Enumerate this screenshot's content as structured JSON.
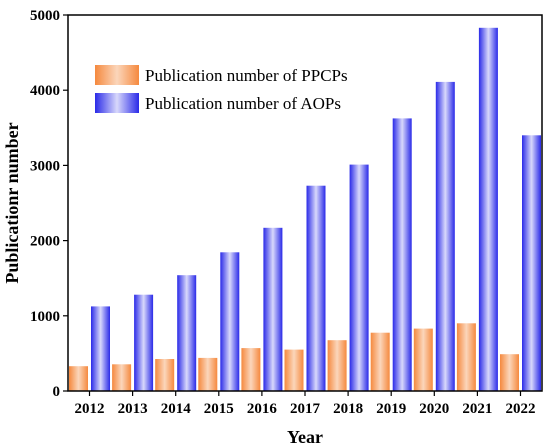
{
  "chart_data": {
    "type": "bar",
    "title": "",
    "xlabel": "Year",
    "ylabel": "Publicationr number",
    "categories": [
      "2012",
      "2013",
      "2014",
      "2015",
      "2016",
      "2017",
      "2018",
      "2019",
      "2020",
      "2021",
      "2022"
    ],
    "series": [
      {
        "name": "Publication number of PPCPs",
        "values": [
          330,
          355,
          425,
          440,
          570,
          550,
          675,
          775,
          830,
          900,
          490
        ],
        "color": "#f5893e"
      },
      {
        "name": "Publication number of AOPs",
        "values": [
          1125,
          1280,
          1540,
          1845,
          2170,
          2730,
          3010,
          3625,
          4110,
          4830,
          3400
        ],
        "color": "#2a2ae8"
      }
    ],
    "ylim": [
      0,
      5000
    ],
    "yticks": [
      0,
      1000,
      2000,
      3000,
      4000,
      5000
    ],
    "grid": false,
    "legend_position": "top-left"
  }
}
